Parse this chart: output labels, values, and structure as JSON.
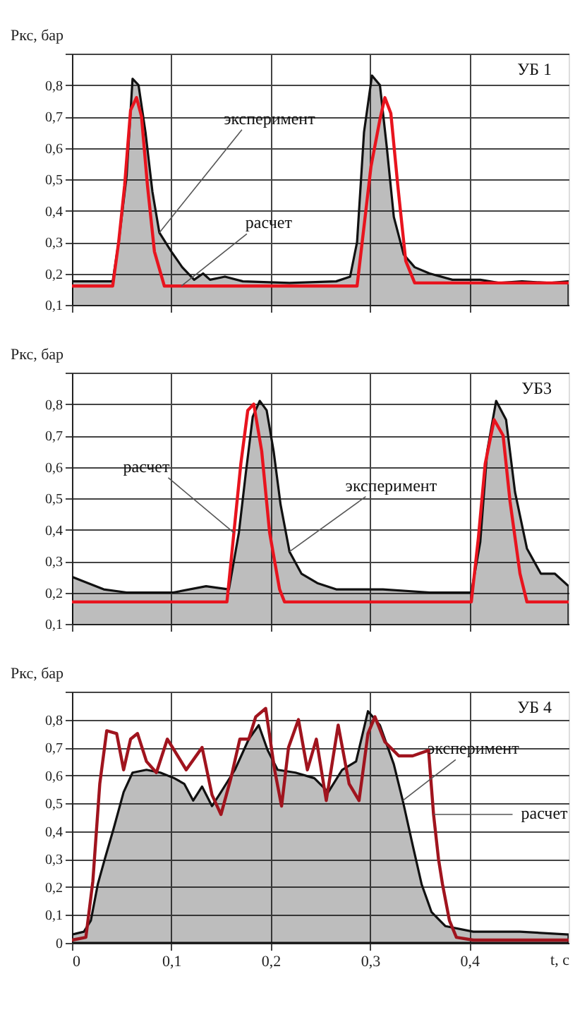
{
  "chart_data": [
    {
      "type": "line",
      "title": "УБ 1",
      "ylabel": "Pкс, бар",
      "tick_labels": "y",
      "grid": true,
      "xlim": [
        0,
        0.5
      ],
      "xticks": [
        {
          "value": 0,
          "label": null
        },
        {
          "value": 0.1,
          "label": null
        },
        {
          "value": 0.2,
          "label": null
        },
        {
          "value": 0.3,
          "label": null
        },
        {
          "value": 0.4,
          "label": null
        }
      ],
      "ylim": [
        0.1,
        0.9
      ],
      "yticks": [
        {
          "value": 0.1,
          "label": "0,1"
        },
        {
          "value": 0.2,
          "label": "0,2"
        },
        {
          "value": 0.3,
          "label": "0,3"
        },
        {
          "value": 0.4,
          "label": "0,4"
        },
        {
          "value": 0.5,
          "label": "0,5"
        },
        {
          "value": 0.6,
          "label": "0,6"
        },
        {
          "value": 0.7,
          "label": "0,7"
        },
        {
          "value": 0.8,
          "label": "0,8"
        },
        {
          "value": 0.9,
          "label": null
        }
      ],
      "annotations": [
        {
          "text": "эксперимент",
          "x": 0.088,
          "y": 0.33
        },
        {
          "text": "расчет",
          "x": 0.11,
          "y": 0.16
        }
      ],
      "series": [
        {
          "type": "area",
          "color": "#111111",
          "x": [
            0,
            0.041,
            0.047,
            0.055,
            0.061,
            0.067,
            0.074,
            0.081,
            0.088,
            0.1,
            0.111,
            0.123,
            0.132,
            0.139,
            0.154,
            0.172,
            0.219,
            0.266,
            0.28,
            0.287,
            0.294,
            0.302,
            0.31,
            0.317,
            0.324,
            0.334,
            0.345,
            0.36,
            0.383,
            0.411,
            0.43,
            0.453,
            0.481,
            0.5
          ],
          "values": [
            0.175,
            0.175,
            0.3,
            0.51,
            0.82,
            0.8,
            0.65,
            0.46,
            0.33,
            0.27,
            0.22,
            0.18,
            0.2,
            0.18,
            0.19,
            0.175,
            0.17,
            0.175,
            0.19,
            0.3,
            0.65,
            0.83,
            0.8,
            0.6,
            0.38,
            0.26,
            0.22,
            0.2,
            0.18,
            0.18,
            0.17,
            0.175,
            0.17,
            0.175
          ]
        },
        {
          "type": "line",
          "color": "#e8141e",
          "x": [
            0,
            0.041,
            0.047,
            0.053,
            0.059,
            0.065,
            0.07,
            0.076,
            0.083,
            0.093,
            0.287,
            0.294,
            0.301,
            0.31,
            0.315,
            0.321,
            0.328,
            0.336,
            0.345,
            0.406,
            0.5
          ],
          "values": [
            0.16,
            0.16,
            0.3,
            0.48,
            0.72,
            0.76,
            0.7,
            0.48,
            0.27,
            0.16,
            0.16,
            0.35,
            0.54,
            0.69,
            0.76,
            0.71,
            0.48,
            0.24,
            0.17,
            0.17,
            0.17
          ]
        }
      ]
    },
    {
      "type": "line",
      "title": "УБ3",
      "ylabel": "Pкс, бар",
      "tick_labels": "y",
      "grid": true,
      "xlim": [
        0,
        0.5
      ],
      "xticks": [
        {
          "value": 0,
          "label": null
        },
        {
          "value": 0.1,
          "label": null
        },
        {
          "value": 0.2,
          "label": null
        },
        {
          "value": 0.3,
          "label": null
        },
        {
          "value": 0.4,
          "label": null
        }
      ],
      "ylim": [
        0.1,
        0.9
      ],
      "yticks": [
        {
          "value": 0.1,
          "label": "0,1"
        },
        {
          "value": 0.2,
          "label": "0,2"
        },
        {
          "value": 0.3,
          "label": "0,3"
        },
        {
          "value": 0.4,
          "label": "0,4"
        },
        {
          "value": 0.5,
          "label": "0,5"
        },
        {
          "value": 0.6,
          "label": "0,6"
        },
        {
          "value": 0.7,
          "label": "0,7"
        },
        {
          "value": 0.8,
          "label": "0,8"
        },
        {
          "value": 0.9,
          "label": null
        }
      ],
      "annotations": [
        {
          "text": "расчет",
          "x": 0.163,
          "y": 0.39
        },
        {
          "text": "эксперимент",
          "x": 0.219,
          "y": 0.33
        }
      ],
      "series": [
        {
          "type": "area",
          "color": "#111111",
          "x": [
            0,
            0.008,
            0.032,
            0.055,
            0.102,
            0.135,
            0.158,
            0.168,
            0.175,
            0.182,
            0.189,
            0.196,
            0.203,
            0.21,
            0.219,
            0.231,
            0.247,
            0.266,
            0.313,
            0.36,
            0.402,
            0.411,
            0.418,
            0.427,
            0.437,
            0.446,
            0.458,
            0.472,
            0.486,
            0.5
          ],
          "values": [
            0.25,
            0.24,
            0.21,
            0.2,
            0.2,
            0.22,
            0.21,
            0.39,
            0.58,
            0.76,
            0.81,
            0.78,
            0.65,
            0.48,
            0.33,
            0.26,
            0.23,
            0.21,
            0.21,
            0.2,
            0.2,
            0.36,
            0.65,
            0.81,
            0.75,
            0.52,
            0.34,
            0.26,
            0.26,
            0.22
          ]
        },
        {
          "type": "line",
          "color": "#e8141e",
          "x": [
            0,
            0.156,
            0.163,
            0.17,
            0.177,
            0.183,
            0.191,
            0.199,
            0.209,
            0.214,
            0.402,
            0.409,
            0.416,
            0.425,
            0.434,
            0.441,
            0.451,
            0.458,
            0.5
          ],
          "values": [
            0.17,
            0.17,
            0.39,
            0.61,
            0.78,
            0.8,
            0.65,
            0.39,
            0.21,
            0.17,
            0.17,
            0.37,
            0.61,
            0.75,
            0.7,
            0.49,
            0.26,
            0.17,
            0.17
          ]
        }
      ]
    },
    {
      "type": "line",
      "title": "УБ 4",
      "ylabel": "Pкс, бар",
      "xlabel": "t, c",
      "grid": true,
      "xlim": [
        0,
        0.5
      ],
      "xticks": [
        0,
        {
          "value": 0.1,
          "label": "0,1"
        },
        {
          "value": 0.2,
          "label": "0,2"
        },
        {
          "value": 0.3,
          "label": "0,3"
        },
        {
          "value": 0.4,
          "label": "0,4"
        }
      ],
      "ylim": [
        0,
        0.9
      ],
      "yticks": [
        0,
        {
          "value": 0.1,
          "label": "0,1"
        },
        {
          "value": 0.2,
          "label": "0,2"
        },
        {
          "value": 0.3,
          "label": "0,3"
        },
        {
          "value": 0.4,
          "label": "0,4"
        },
        {
          "value": 0.5,
          "label": "0,5"
        },
        {
          "value": 0.6,
          "label": "0,6"
        },
        {
          "value": 0.7,
          "label": "0,7"
        },
        {
          "value": 0.8,
          "label": "0,8"
        },
        {
          "value": 0.9,
          "label": null
        }
      ],
      "annotations": [
        {
          "text": "эксперимент",
          "x": 0.333,
          "y": 0.51
        },
        {
          "text": "расчет",
          "x": 0.364,
          "y": 0.46
        }
      ],
      "series": [
        {
          "type": "area",
          "color": "#111111",
          "x": [
            0,
            0.012,
            0.019,
            0.026,
            0.033,
            0.042,
            0.052,
            0.061,
            0.075,
            0.089,
            0.103,
            0.113,
            0.122,
            0.131,
            0.141,
            0.15,
            0.164,
            0.178,
            0.188,
            0.197,
            0.207,
            0.225,
            0.244,
            0.258,
            0.272,
            0.286,
            0.298,
            0.31,
            0.324,
            0.333,
            0.343,
            0.352,
            0.362,
            0.376,
            0.404,
            0.451,
            0.5
          ],
          "values": [
            0.03,
            0.04,
            0.08,
            0.21,
            0.3,
            0.41,
            0.54,
            0.61,
            0.62,
            0.61,
            0.59,
            0.57,
            0.51,
            0.56,
            0.49,
            0.54,
            0.62,
            0.73,
            0.78,
            0.69,
            0.62,
            0.61,
            0.59,
            0.54,
            0.62,
            0.65,
            0.83,
            0.78,
            0.64,
            0.51,
            0.35,
            0.21,
            0.11,
            0.06,
            0.04,
            0.04,
            0.03
          ]
        },
        {
          "type": "line",
          "color": "#a0141e",
          "x": [
            0,
            0.014,
            0.021,
            0.028,
            0.035,
            0.045,
            0.052,
            0.059,
            0.066,
            0.075,
            0.085,
            0.096,
            0.103,
            0.115,
            0.131,
            0.141,
            0.15,
            0.16,
            0.169,
            0.178,
            0.185,
            0.195,
            0.204,
            0.211,
            0.218,
            0.228,
            0.237,
            0.246,
            0.256,
            0.268,
            0.279,
            0.289,
            0.298,
            0.305,
            0.315,
            0.329,
            0.343,
            0.359,
            0.364,
            0.369,
            0.373,
            0.38,
            0.387,
            0.404,
            0.5
          ],
          "values": [
            0.01,
            0.02,
            0.22,
            0.57,
            0.76,
            0.75,
            0.62,
            0.73,
            0.75,
            0.65,
            0.61,
            0.73,
            0.69,
            0.62,
            0.7,
            0.53,
            0.46,
            0.59,
            0.73,
            0.73,
            0.81,
            0.84,
            0.62,
            0.49,
            0.7,
            0.8,
            0.62,
            0.73,
            0.51,
            0.78,
            0.57,
            0.51,
            0.75,
            0.81,
            0.72,
            0.67,
            0.67,
            0.69,
            0.46,
            0.3,
            0.21,
            0.08,
            0.02,
            0.01,
            0.01
          ]
        }
      ]
    }
  ]
}
